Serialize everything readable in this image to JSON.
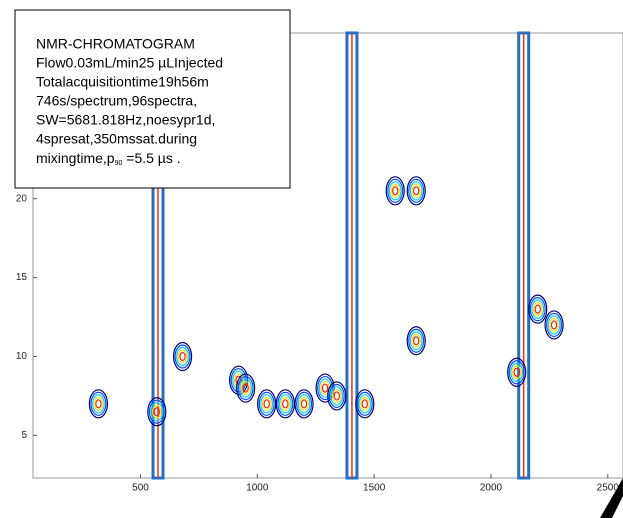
{
  "chart_data": {
    "type": "contour",
    "annotation": {
      "lines": [
        "NMR-CHROMATOGRAM",
        "Flow0.03mL/min25 µLInjected",
        "Totalacquisitiontime19h56m",
        "746s/spectrum,96spectra,",
        "SW=5681.818Hz,noesypr1d,",
        "4spresat,350mssat.during"
      ],
      "last_line": [
        "mixingtime,p",
        "90",
        " =5.5 µs ."
      ]
    },
    "xlim": [
      40,
      2565
    ],
    "ylim": [
      2.3,
      30.5
    ],
    "xticks": [
      500,
      1000,
      1500,
      2000,
      2500
    ],
    "yticks": [
      5,
      10,
      15,
      20
    ],
    "streaks": {
      "x": [
        575,
        1405,
        2140
      ],
      "color": "#1f6fd0"
    },
    "peaks": {
      "x": [
        320,
        570,
        680,
        920,
        950,
        1040,
        1120,
        1200,
        1290,
        1340,
        1460,
        1590,
        1680,
        1680,
        2110,
        2200,
        2270
      ],
      "y": [
        7,
        6.5,
        10,
        8.5,
        8,
        7,
        7,
        7,
        8,
        7.5,
        7,
        20.5,
        20.5,
        11,
        9,
        13,
        12
      ],
      "colors": [
        "#00007f",
        "#0050ff",
        "#00d0ff",
        "#ffe000",
        "#ff2000"
      ]
    }
  }
}
